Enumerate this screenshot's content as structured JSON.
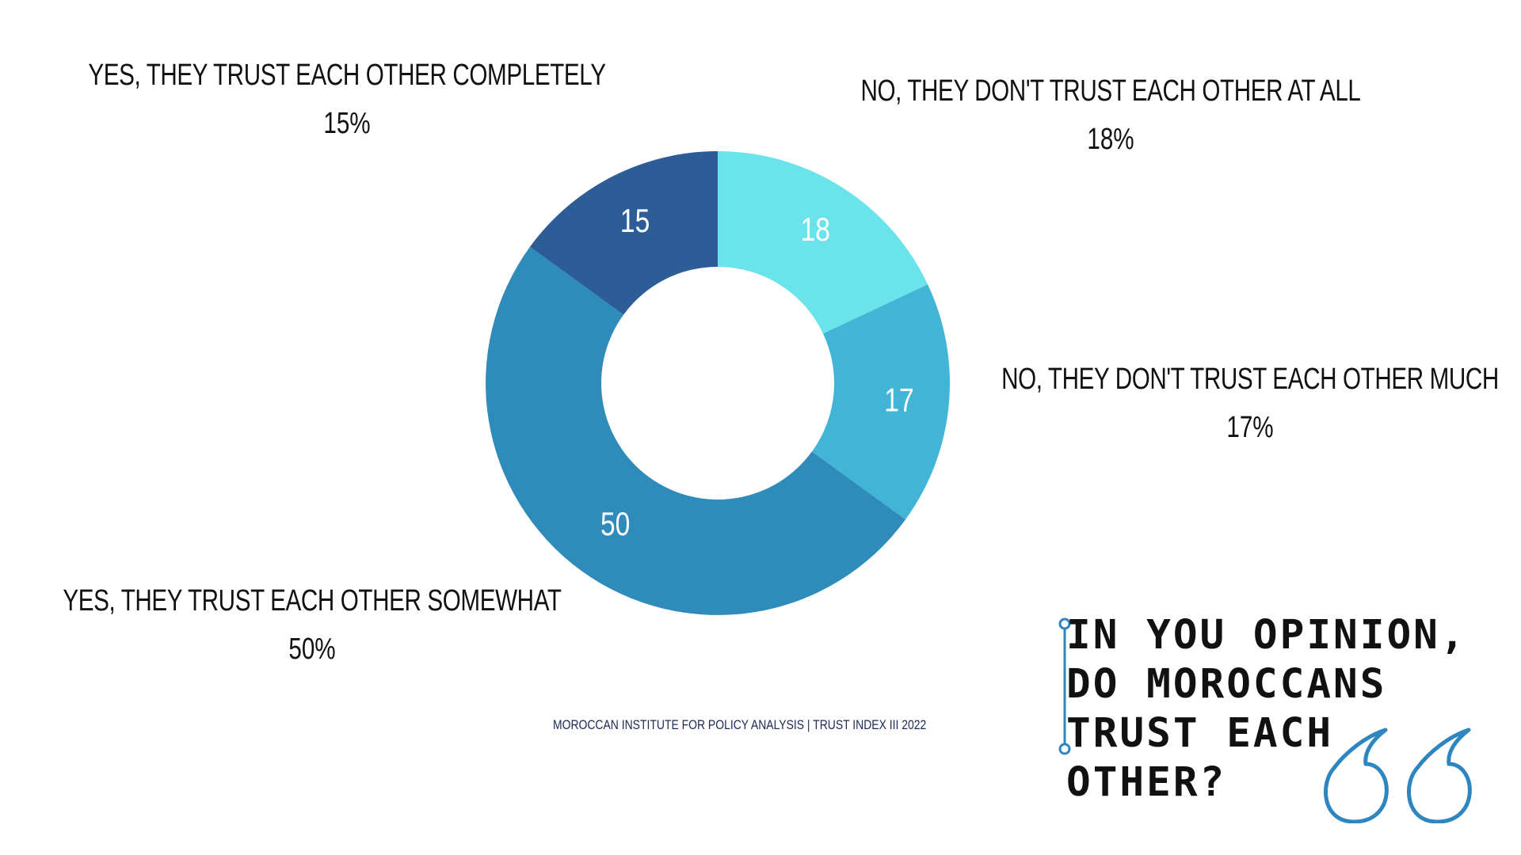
{
  "chart_data": {
    "type": "pie",
    "donut": true,
    "slices": [
      {
        "label": "NO, THEY DON'T TRUST EACH OTHER AT ALL",
        "value": 18,
        "percent_label": "18%",
        "color": "#6ae4ea"
      },
      {
        "label": "NO, THEY DON'T TRUST EACH OTHER MUCH",
        "value": 17,
        "percent_label": "17%",
        "color": "#42b5d6"
      },
      {
        "label": "YES, THEY TRUST EACH OTHER SOMEWHAT",
        "value": 50,
        "percent_label": "50%",
        "color": "#2e8bba"
      },
      {
        "label": "YES, THEY TRUST EACH OTHER COMPLETELY",
        "value": 15,
        "percent_label": "15%",
        "color": "#2d5d96"
      }
    ],
    "legend": "outside-labels"
  },
  "question": "IN YOU OPINION, DO MOROCCANS TRUST EACH OTHER?",
  "source": "MOROCCAN  INSTITUTE FOR POLICY ANALYSIS | TRUST INDEX III 2022",
  "accent_color": "#2e86c1",
  "icons": {
    "quote": "quote-marks-icon",
    "rule": "vertical-rule-icon"
  }
}
